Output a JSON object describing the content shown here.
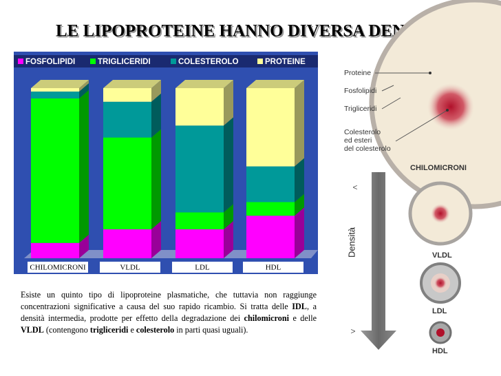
{
  "title": "LE LIPOPROTEINE HANNO DIVERSA DENSITA’",
  "chart_data": {
    "type": "bar",
    "stacked": true,
    "categories": [
      "CHILOMICRONI",
      "VLDL",
      "LDL",
      "HDL"
    ],
    "series": [
      {
        "name": "FOSFOLIPIDI",
        "color": "#ff00ff",
        "values": [
          9,
          17,
          17,
          25
        ]
      },
      {
        "name": "TRIGLICERIDI",
        "color": "#00ff00",
        "values": [
          85,
          54,
          10,
          8
        ]
      },
      {
        "name": "COLESTEROLO",
        "color": "#009999",
        "values": [
          4,
          21,
          51,
          21
        ]
      },
      {
        "name": "PROTEINE",
        "color": "#ffff99",
        "values": [
          2,
          8,
          22,
          46
        ]
      }
    ]
  },
  "paragraph": [
    {
      "text": "Esiste un quinto tipo di lipoproteine plasmatiche, che tuttavia non raggiunge concentrazioni significative a causa del suo rapido ricambio. Si tratta delle ",
      "bold": false
    },
    {
      "text": "IDL",
      "bold": true
    },
    {
      "text": ", a densità intermedia, prodotte per effetto della degradazione dei ",
      "bold": false
    },
    {
      "text": "chilomicroni",
      "bold": true
    },
    {
      "text": " e delle ",
      "bold": false
    },
    {
      "text": "VLDL",
      "bold": true
    },
    {
      "text": " (contengono ",
      "bold": false
    },
    {
      "text": "trigliceridi",
      "bold": true
    },
    {
      "text": " e ",
      "bold": false
    },
    {
      "text": "colesterolo",
      "bold": true
    },
    {
      "text": " in parti quasi uguali).",
      "bold": false
    }
  ],
  "diagram": {
    "parts": [
      "Proteine",
      "Fosfolipidi",
      "Trigliceridi"
    ],
    "cholesterol": [
      "Colesterolo",
      "ed esteri",
      "del colesterolo"
    ],
    "particles": [
      "CHILOMICRONI",
      "VLDL",
      "LDL",
      "HDL"
    ],
    "axis_label": "Densità",
    "low": "<",
    "high": ">"
  }
}
